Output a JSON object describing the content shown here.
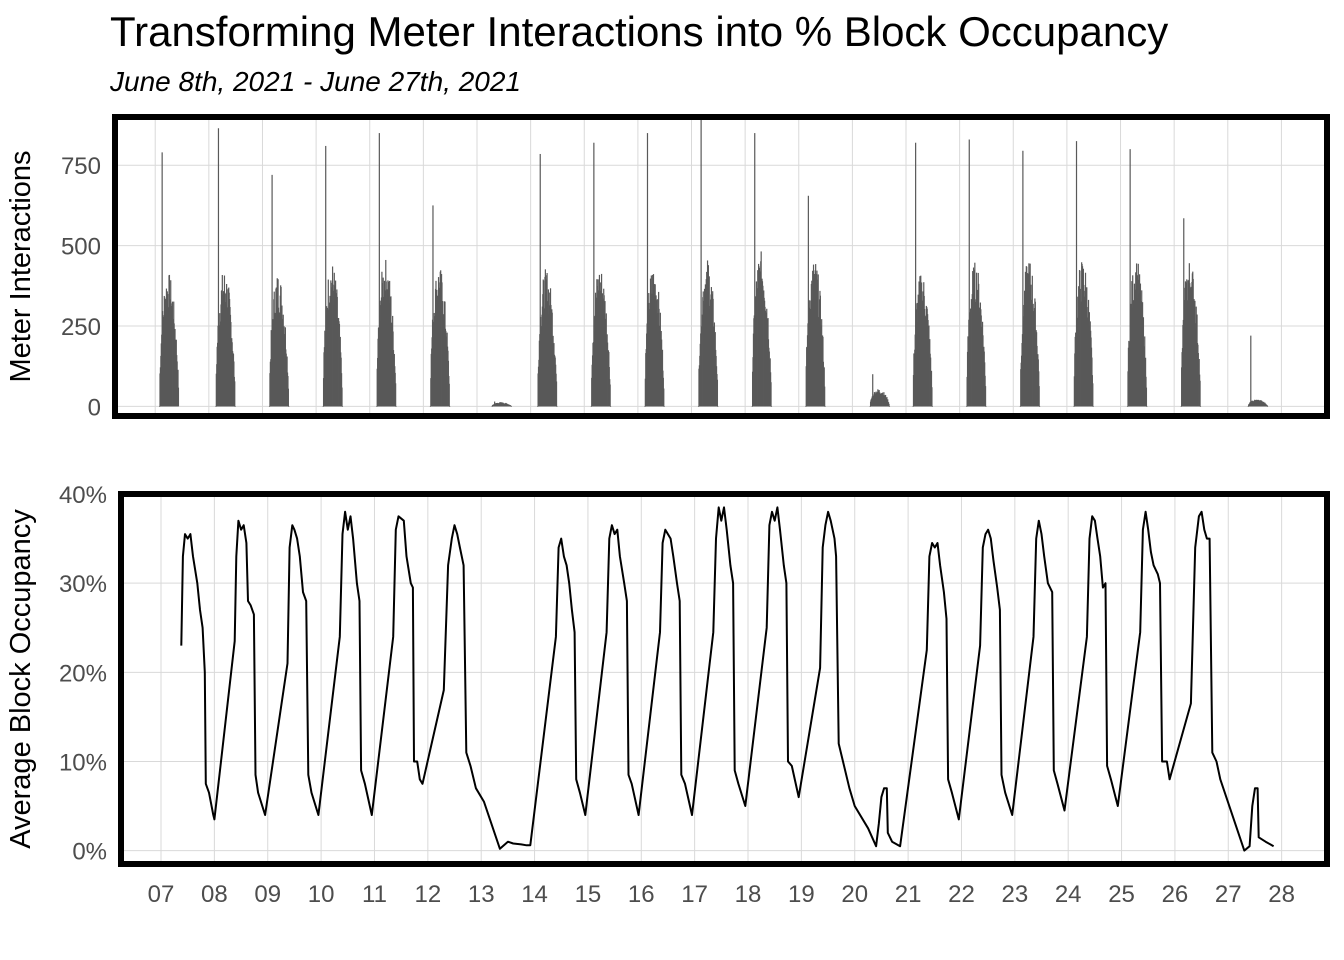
{
  "title": "Transforming Meter Interactions into % Block Occupancy",
  "subtitle": "June 8th, 2021 - June 27th, 2021",
  "x_axis": {
    "ticks": [
      "07",
      "08",
      "09",
      "10",
      "11",
      "12",
      "13",
      "14",
      "15",
      "16",
      "17",
      "18",
      "19",
      "20",
      "21",
      "22",
      "23",
      "24",
      "25",
      "26",
      "27",
      "28"
    ]
  },
  "colors": {
    "bar": "#595959",
    "line": "#000000",
    "panel_border": "#000000",
    "grid": "#d9d9d9"
  },
  "chart_data": [
    {
      "type": "bar",
      "panel": "top",
      "ylabel": "Meter Interactions",
      "ylim": [
        -30,
        900
      ],
      "yticks": [
        0,
        250,
        500,
        750
      ],
      "yticklabels": [
        "0",
        "250",
        "500",
        "750"
      ],
      "xlim_day": [
        6.25,
        28.85
      ],
      "days": [
        {
          "day": 7.25,
          "peak": 790,
          "level": 380,
          "spread": 0.16,
          "extra": 0.5
        },
        {
          "day": 8.3,
          "peak": 865,
          "level": 390,
          "spread": 0.16,
          "extra": 0.5
        },
        {
          "day": 9.3,
          "peak": 720,
          "level": 380,
          "spread": 0.16,
          "extra": 0.5
        },
        {
          "day": 10.3,
          "peak": 810,
          "level": 410,
          "spread": 0.16,
          "extra": 0.5
        },
        {
          "day": 11.3,
          "peak": 850,
          "level": 420,
          "spread": 0.16,
          "extra": 0.5
        },
        {
          "day": 12.3,
          "peak": 625,
          "level": 400,
          "spread": 0.16,
          "extra": 0.5
        },
        {
          "day": 13.45,
          "peak": 15,
          "level": 12,
          "spread": 0.18,
          "extra": 0.5
        },
        {
          "day": 14.3,
          "peak": 785,
          "level": 390,
          "spread": 0.16,
          "extra": 0.5
        },
        {
          "day": 15.3,
          "peak": 820,
          "level": 400,
          "spread": 0.16,
          "extra": 0.5
        },
        {
          "day": 16.3,
          "peak": 850,
          "level": 400,
          "spread": 0.16,
          "extra": 0.5
        },
        {
          "day": 17.3,
          "peak": 900,
          "level": 420,
          "spread": 0.16,
          "extra": 0.5
        },
        {
          "day": 18.3,
          "peak": 850,
          "level": 440,
          "spread": 0.16,
          "extra": 0.5
        },
        {
          "day": 19.3,
          "peak": 655,
          "level": 420,
          "spread": 0.16,
          "extra": 0.5
        },
        {
          "day": 20.5,
          "peak": 100,
          "level": 50,
          "spread": 0.12,
          "extra": 0.5
        },
        {
          "day": 21.3,
          "peak": 820,
          "level": 380,
          "spread": 0.16,
          "extra": 0.5
        },
        {
          "day": 22.3,
          "peak": 830,
          "level": 410,
          "spread": 0.16,
          "extra": 0.5
        },
        {
          "day": 23.3,
          "peak": 795,
          "level": 420,
          "spread": 0.16,
          "extra": 0.5
        },
        {
          "day": 24.3,
          "peak": 825,
          "level": 420,
          "spread": 0.16,
          "extra": 0.5
        },
        {
          "day": 25.3,
          "peak": 800,
          "level": 420,
          "spread": 0.16,
          "extra": 0.5
        },
        {
          "day": 26.3,
          "peak": 585,
          "level": 420,
          "spread": 0.16,
          "extra": 0.5
        },
        {
          "day": 27.55,
          "peak": 220,
          "level": 20,
          "spread": 0.15,
          "extra": 0.5
        }
      ]
    },
    {
      "type": "line",
      "panel": "bottom",
      "ylabel": "Average Block Occupancy",
      "ylim": [
        -0.015,
        0.4
      ],
      "yticks": [
        0,
        0.1,
        0.2,
        0.3,
        0.4
      ],
      "yticklabels": [
        "0%",
        "10%",
        "20%",
        "30%",
        "40%"
      ],
      "xlim_day": [
        6.25,
        28.85
      ],
      "points": [
        [
          7.38,
          0.23
        ],
        [
          7.41,
          0.33
        ],
        [
          7.45,
          0.355
        ],
        [
          7.5,
          0.35
        ],
        [
          7.55,
          0.355
        ],
        [
          7.6,
          0.33
        ],
        [
          7.68,
          0.3
        ],
        [
          7.73,
          0.27
        ],
        [
          7.78,
          0.25
        ],
        [
          7.82,
          0.2
        ],
        [
          7.84,
          0.075
        ],
        [
          7.9,
          0.065
        ],
        [
          7.98,
          0.04
        ],
        [
          8.0,
          0.035
        ],
        [
          8.38,
          0.235
        ],
        [
          8.41,
          0.33
        ],
        [
          8.45,
          0.37
        ],
        [
          8.5,
          0.36
        ],
        [
          8.55,
          0.365
        ],
        [
          8.6,
          0.345
        ],
        [
          8.63,
          0.28
        ],
        [
          8.68,
          0.275
        ],
        [
          8.74,
          0.265
        ],
        [
          8.77,
          0.085
        ],
        [
          8.82,
          0.065
        ],
        [
          8.95,
          0.04
        ],
        [
          9.37,
          0.21
        ],
        [
          9.41,
          0.34
        ],
        [
          9.46,
          0.365
        ],
        [
          9.5,
          0.36
        ],
        [
          9.55,
          0.35
        ],
        [
          9.6,
          0.33
        ],
        [
          9.66,
          0.29
        ],
        [
          9.72,
          0.28
        ],
        [
          9.76,
          0.085
        ],
        [
          9.82,
          0.065
        ],
        [
          9.95,
          0.04
        ],
        [
          10.35,
          0.24
        ],
        [
          10.4,
          0.355
        ],
        [
          10.45,
          0.38
        ],
        [
          10.5,
          0.36
        ],
        [
          10.55,
          0.375
        ],
        [
          10.6,
          0.35
        ],
        [
          10.67,
          0.3
        ],
        [
          10.72,
          0.28
        ],
        [
          10.75,
          0.09
        ],
        [
          10.82,
          0.075
        ],
        [
          10.95,
          0.04
        ],
        [
          11.35,
          0.24
        ],
        [
          11.4,
          0.36
        ],
        [
          11.45,
          0.375
        ],
        [
          11.55,
          0.37
        ],
        [
          11.6,
          0.33
        ],
        [
          11.68,
          0.3
        ],
        [
          11.72,
          0.295
        ],
        [
          11.74,
          0.1
        ],
        [
          11.8,
          0.1
        ],
        [
          11.85,
          0.08
        ],
        [
          11.9,
          0.075
        ],
        [
          12.3,
          0.18
        ],
        [
          12.38,
          0.32
        ],
        [
          12.45,
          0.35
        ],
        [
          12.5,
          0.365
        ],
        [
          12.55,
          0.355
        ],
        [
          12.6,
          0.34
        ],
        [
          12.67,
          0.32
        ],
        [
          12.72,
          0.11
        ],
        [
          12.8,
          0.095
        ],
        [
          12.9,
          0.07
        ],
        [
          13.05,
          0.055
        ],
        [
          13.35,
          0.002
        ],
        [
          13.5,
          0.01
        ],
        [
          13.6,
          0.008
        ],
        [
          13.75,
          0.007
        ],
        [
          13.85,
          0.006
        ],
        [
          13.92,
          0.006
        ],
        [
          14.4,
          0.24
        ],
        [
          14.45,
          0.34
        ],
        [
          14.5,
          0.35
        ],
        [
          14.55,
          0.33
        ],
        [
          14.6,
          0.32
        ],
        [
          14.65,
          0.3
        ],
        [
          14.7,
          0.27
        ],
        [
          14.75,
          0.245
        ],
        [
          14.78,
          0.08
        ],
        [
          14.85,
          0.065
        ],
        [
          14.95,
          0.04
        ],
        [
          15.35,
          0.245
        ],
        [
          15.4,
          0.35
        ],
        [
          15.45,
          0.365
        ],
        [
          15.5,
          0.355
        ],
        [
          15.55,
          0.36
        ],
        [
          15.6,
          0.33
        ],
        [
          15.68,
          0.3
        ],
        [
          15.73,
          0.28
        ],
        [
          15.76,
          0.085
        ],
        [
          15.82,
          0.075
        ],
        [
          15.95,
          0.04
        ],
        [
          16.35,
          0.245
        ],
        [
          16.4,
          0.345
        ],
        [
          16.45,
          0.36
        ],
        [
          16.55,
          0.35
        ],
        [
          16.6,
          0.33
        ],
        [
          16.67,
          0.3
        ],
        [
          16.72,
          0.28
        ],
        [
          16.75,
          0.085
        ],
        [
          16.82,
          0.075
        ],
        [
          16.95,
          0.04
        ],
        [
          17.35,
          0.245
        ],
        [
          17.4,
          0.35
        ],
        [
          17.45,
          0.385
        ],
        [
          17.5,
          0.37
        ],
        [
          17.55,
          0.385
        ],
        [
          17.6,
          0.36
        ],
        [
          17.67,
          0.32
        ],
        [
          17.72,
          0.3
        ],
        [
          17.75,
          0.09
        ],
        [
          17.82,
          0.075
        ],
        [
          17.95,
          0.05
        ],
        [
          18.35,
          0.25
        ],
        [
          18.4,
          0.365
        ],
        [
          18.45,
          0.38
        ],
        [
          18.5,
          0.37
        ],
        [
          18.55,
          0.385
        ],
        [
          18.6,
          0.36
        ],
        [
          18.67,
          0.32
        ],
        [
          18.72,
          0.3
        ],
        [
          18.75,
          0.1
        ],
        [
          18.82,
          0.095
        ],
        [
          18.95,
          0.06
        ],
        [
          19.35,
          0.205
        ],
        [
          19.4,
          0.34
        ],
        [
          19.45,
          0.365
        ],
        [
          19.5,
          0.38
        ],
        [
          19.55,
          0.37
        ],
        [
          19.62,
          0.35
        ],
        [
          19.65,
          0.33
        ],
        [
          19.7,
          0.12
        ],
        [
          19.78,
          0.1
        ],
        [
          19.9,
          0.07
        ],
        [
          20.0,
          0.05
        ],
        [
          20.25,
          0.025
        ],
        [
          20.4,
          0.005
        ],
        [
          20.45,
          0.03
        ],
        [
          20.5,
          0.06
        ],
        [
          20.55,
          0.07
        ],
        [
          20.6,
          0.07
        ],
        [
          20.62,
          0.02
        ],
        [
          20.7,
          0.01
        ],
        [
          20.85,
          0.005
        ],
        [
          21.35,
          0.225
        ],
        [
          21.4,
          0.33
        ],
        [
          21.45,
          0.345
        ],
        [
          21.5,
          0.34
        ],
        [
          21.55,
          0.345
        ],
        [
          21.6,
          0.32
        ],
        [
          21.67,
          0.29
        ],
        [
          21.72,
          0.26
        ],
        [
          21.75,
          0.08
        ],
        [
          21.82,
          0.065
        ],
        [
          21.95,
          0.035
        ],
        [
          22.35,
          0.23
        ],
        [
          22.4,
          0.34
        ],
        [
          22.45,
          0.355
        ],
        [
          22.5,
          0.36
        ],
        [
          22.55,
          0.35
        ],
        [
          22.6,
          0.325
        ],
        [
          22.67,
          0.295
        ],
        [
          22.72,
          0.27
        ],
        [
          22.75,
          0.085
        ],
        [
          22.82,
          0.065
        ],
        [
          22.95,
          0.04
        ],
        [
          23.35,
          0.24
        ],
        [
          23.4,
          0.35
        ],
        [
          23.45,
          0.37
        ],
        [
          23.5,
          0.355
        ],
        [
          23.55,
          0.33
        ],
        [
          23.62,
          0.3
        ],
        [
          23.7,
          0.29
        ],
        [
          23.73,
          0.09
        ],
        [
          23.8,
          0.075
        ],
        [
          23.93,
          0.045
        ],
        [
          24.35,
          0.24
        ],
        [
          24.4,
          0.35
        ],
        [
          24.45,
          0.375
        ],
        [
          24.5,
          0.37
        ],
        [
          24.55,
          0.35
        ],
        [
          24.6,
          0.33
        ],
        [
          24.65,
          0.295
        ],
        [
          24.7,
          0.3
        ],
        [
          24.73,
          0.095
        ],
        [
          24.8,
          0.08
        ],
        [
          24.93,
          0.05
        ],
        [
          25.35,
          0.245
        ],
        [
          25.4,
          0.36
        ],
        [
          25.45,
          0.38
        ],
        [
          25.5,
          0.36
        ],
        [
          25.55,
          0.335
        ],
        [
          25.6,
          0.32
        ],
        [
          25.68,
          0.31
        ],
        [
          25.72,
          0.3
        ],
        [
          25.76,
          0.1
        ],
        [
          25.85,
          0.1
        ],
        [
          25.9,
          0.08
        ],
        [
          26.3,
          0.165
        ],
        [
          26.38,
          0.34
        ],
        [
          26.45,
          0.375
        ],
        [
          26.5,
          0.38
        ],
        [
          26.55,
          0.36
        ],
        [
          26.6,
          0.35
        ],
        [
          26.65,
          0.35
        ],
        [
          26.7,
          0.11
        ],
        [
          26.78,
          0.1
        ],
        [
          26.85,
          0.08
        ],
        [
          27.3,
          0.0
        ],
        [
          27.4,
          0.005
        ],
        [
          27.45,
          0.05
        ],
        [
          27.5,
          0.07
        ],
        [
          27.55,
          0.07
        ],
        [
          27.57,
          0.015
        ],
        [
          27.7,
          0.01
        ],
        [
          27.85,
          0.005
        ]
      ]
    }
  ]
}
